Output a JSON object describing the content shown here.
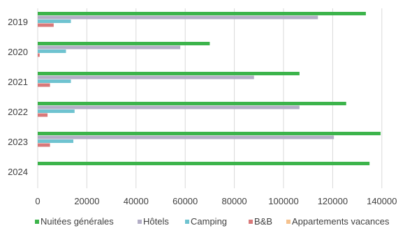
{
  "chart_data": {
    "type": "bar",
    "orientation": "horizontal",
    "categories": [
      "2019",
      "2020",
      "2021",
      "2022",
      "2023",
      "2024"
    ],
    "series": [
      {
        "name": "Nuitées générales",
        "color": "#3cb44b",
        "values": [
          133500,
          70000,
          106500,
          125500,
          139500,
          135000
        ]
      },
      {
        "name": "Hôtels",
        "color": "#b3aec6",
        "values": [
          114000,
          58000,
          88000,
          106500,
          120500,
          0
        ]
      },
      {
        "name": "Camping",
        "color": "#6fc3d0",
        "values": [
          13500,
          11500,
          13500,
          15000,
          14500,
          0
        ]
      },
      {
        "name": "B&B",
        "color": "#d9797a",
        "values": [
          6500,
          800,
          5000,
          4000,
          5000,
          0
        ]
      },
      {
        "name": "Appartements vacances",
        "color": "#f5c28e",
        "values": [
          0,
          0,
          0,
          0,
          0,
          0
        ]
      }
    ],
    "xlim": [
      0,
      150000
    ],
    "xticks": [
      "0",
      "20000",
      "40000",
      "60000",
      "80000",
      "100000",
      "120000",
      "140000"
    ],
    "grid": "vertical",
    "legend_position": "bottom",
    "title": "",
    "xlabel": "",
    "ylabel": ""
  }
}
